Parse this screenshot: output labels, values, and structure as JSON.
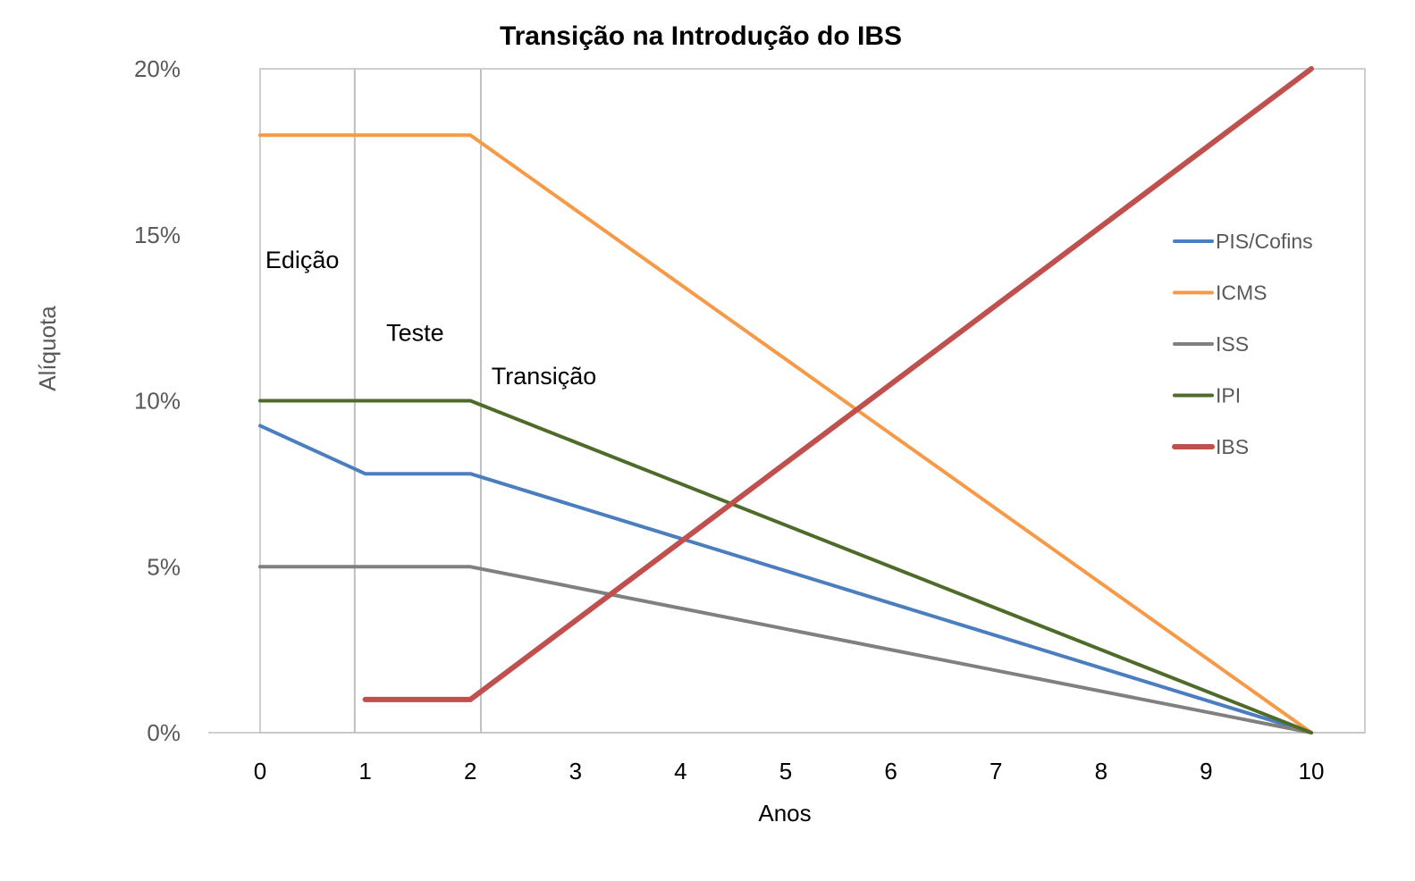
{
  "chart_data": {
    "type": "line",
    "title": "Transição na Introdução do IBS",
    "xlabel": "Anos",
    "ylabel": "Alíquota",
    "x_ticks": [
      "0",
      "1",
      "2",
      "3",
      "4",
      "5",
      "6",
      "7",
      "8",
      "9",
      "10"
    ],
    "y_ticks": [
      "0%",
      "5%",
      "10%",
      "15%",
      "20%"
    ],
    "xlim": [
      0,
      10
    ],
    "ylim": [
      0,
      20
    ],
    "grid": false,
    "legend_position": "right",
    "phase_dividers": [
      0.9,
      2.1
    ],
    "phase_labels": [
      {
        "text": "Edição",
        "x": 0.05,
        "y": 14.0
      },
      {
        "text": "Teste",
        "x": 1.2,
        "y": 11.8
      },
      {
        "text": "Transição",
        "x": 2.2,
        "y": 10.5
      }
    ],
    "series": [
      {
        "name": "PIS/Cofins",
        "color": "#4a7ebf",
        "width": 4,
        "points": [
          [
            0,
            9.25
          ],
          [
            1,
            7.8
          ],
          [
            2,
            7.8
          ],
          [
            10,
            0
          ]
        ]
      },
      {
        "name": "ICMS",
        "color": "#f79a48",
        "width": 4,
        "points": [
          [
            0,
            18
          ],
          [
            2,
            18
          ],
          [
            10,
            0
          ]
        ]
      },
      {
        "name": "ISS",
        "color": "#808080",
        "width": 4,
        "points": [
          [
            0,
            5
          ],
          [
            2,
            5
          ],
          [
            10,
            0
          ]
        ]
      },
      {
        "name": "IPI",
        "color": "#4e6b2a",
        "width": 4,
        "points": [
          [
            0,
            10
          ],
          [
            2,
            10
          ],
          [
            10,
            0
          ]
        ]
      },
      {
        "name": "IBS",
        "color": "#c0504d",
        "width": 6,
        "points": [
          [
            1,
            1
          ],
          [
            2,
            1
          ],
          [
            10,
            20
          ]
        ]
      }
    ]
  }
}
